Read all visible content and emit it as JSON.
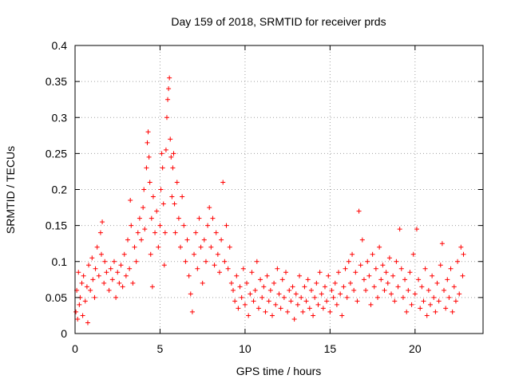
{
  "chart_data": {
    "type": "scatter",
    "title": "Day 159 of 2018, SRMTID for receiver prds",
    "xlabel": "GPS time / hours",
    "ylabel": "SRMTID / TECUs",
    "xlim": [
      0,
      24
    ],
    "ylim": [
      0,
      0.4
    ],
    "grid": true,
    "marker": "+",
    "series_color": "#ff0000",
    "x_ticks": [
      {
        "value": 0,
        "label": "0"
      },
      {
        "value": 5,
        "label": "5"
      },
      {
        "value": 10,
        "label": "10"
      },
      {
        "value": 15,
        "label": "15"
      },
      {
        "value": 20,
        "label": "20"
      }
    ],
    "y_ticks": [
      {
        "value": 0,
        "label": "0"
      },
      {
        "value": 0.05,
        "label": "0.05"
      },
      {
        "value": 0.1,
        "label": "0.1"
      },
      {
        "value": 0.15,
        "label": "0.15"
      },
      {
        "value": 0.2,
        "label": "0.2"
      },
      {
        "value": 0.25,
        "label": "0.25"
      },
      {
        "value": 0.3,
        "label": "0.3"
      },
      {
        "value": 0.35,
        "label": "0.35"
      },
      {
        "value": 0.4,
        "label": "0.4"
      }
    ],
    "series": [
      {
        "name": "prds",
        "points": [
          [
            0.05,
            0.03
          ],
          [
            0.1,
            0.06
          ],
          [
            0.15,
            0.02
          ],
          [
            0.2,
            0.085
          ],
          [
            0.25,
            0.04
          ],
          [
            0.3,
            0.05
          ],
          [
            0.4,
            0.07
          ],
          [
            0.45,
            0.025
          ],
          [
            0.5,
            0.08
          ],
          [
            0.6,
            0.045
          ],
          [
            0.7,
            0.065
          ],
          [
            0.75,
            0.015
          ],
          [
            0.8,
            0.095
          ],
          [
            0.9,
            0.06
          ],
          [
            1.0,
            0.105
          ],
          [
            1.05,
            0.075
          ],
          [
            1.15,
            0.05
          ],
          [
            1.2,
            0.09
          ],
          [
            1.3,
            0.12
          ],
          [
            1.4,
            0.08
          ],
          [
            1.5,
            0.14
          ],
          [
            1.55,
            0.11
          ],
          [
            1.6,
            0.155
          ],
          [
            1.7,
            0.07
          ],
          [
            1.75,
            0.1
          ],
          [
            1.85,
            0.085
          ],
          [
            2.0,
            0.06
          ],
          [
            2.1,
            0.09
          ],
          [
            2.2,
            0.075
          ],
          [
            2.3,
            0.1
          ],
          [
            2.4,
            0.05
          ],
          [
            2.5,
            0.085
          ],
          [
            2.6,
            0.07
          ],
          [
            2.7,
            0.095
          ],
          [
            2.8,
            0.065
          ],
          [
            2.9,
            0.11
          ],
          [
            3.0,
            0.08
          ],
          [
            3.1,
            0.13
          ],
          [
            3.2,
            0.09
          ],
          [
            3.25,
            0.185
          ],
          [
            3.3,
            0.15
          ],
          [
            3.4,
            0.07
          ],
          [
            3.5,
            0.12
          ],
          [
            3.6,
            0.1
          ],
          [
            3.7,
            0.14
          ],
          [
            3.8,
            0.16
          ],
          [
            3.9,
            0.13
          ],
          [
            4.0,
            0.175
          ],
          [
            4.05,
            0.2
          ],
          [
            4.1,
            0.145
          ],
          [
            4.2,
            0.23
          ],
          [
            4.25,
            0.265
          ],
          [
            4.3,
            0.28
          ],
          [
            4.35,
            0.245
          ],
          [
            4.4,
            0.21
          ],
          [
            4.45,
            0.11
          ],
          [
            4.5,
            0.16
          ],
          [
            4.55,
            0.065
          ],
          [
            4.6,
            0.19
          ],
          [
            4.7,
            0.14
          ],
          [
            4.8,
            0.17
          ],
          [
            4.9,
            0.12
          ],
          [
            5.0,
            0.15
          ],
          [
            5.05,
            0.2
          ],
          [
            5.1,
            0.25
          ],
          [
            5.15,
            0.23
          ],
          [
            5.2,
            0.18
          ],
          [
            5.25,
            0.095
          ],
          [
            5.3,
            0.14
          ],
          [
            5.35,
            0.255
          ],
          [
            5.4,
            0.3
          ],
          [
            5.45,
            0.325
          ],
          [
            5.5,
            0.34
          ],
          [
            5.55,
            0.355
          ],
          [
            5.6,
            0.27
          ],
          [
            5.65,
            0.245
          ],
          [
            5.7,
            0.19
          ],
          [
            5.75,
            0.23
          ],
          [
            5.8,
            0.25
          ],
          [
            5.85,
            0.18
          ],
          [
            5.9,
            0.14
          ],
          [
            6.0,
            0.21
          ],
          [
            6.1,
            0.16
          ],
          [
            6.2,
            0.12
          ],
          [
            6.3,
            0.19
          ],
          [
            6.4,
            0.15
          ],
          [
            6.5,
            0.1
          ],
          [
            6.6,
            0.13
          ],
          [
            6.7,
            0.08
          ],
          [
            6.8,
            0.055
          ],
          [
            6.9,
            0.03
          ],
          [
            7.0,
            0.11
          ],
          [
            7.1,
            0.14
          ],
          [
            7.2,
            0.09
          ],
          [
            7.3,
            0.16
          ],
          [
            7.4,
            0.12
          ],
          [
            7.5,
            0.07
          ],
          [
            7.6,
            0.13
          ],
          [
            7.7,
            0.1
          ],
          [
            7.8,
            0.15
          ],
          [
            7.9,
            0.175
          ],
          [
            8.0,
            0.12
          ],
          [
            8.1,
            0.16
          ],
          [
            8.2,
            0.095
          ],
          [
            8.3,
            0.14
          ],
          [
            8.4,
            0.11
          ],
          [
            8.5,
            0.085
          ],
          [
            8.6,
            0.13
          ],
          [
            8.7,
            0.21
          ],
          [
            8.8,
            0.1
          ],
          [
            8.9,
            0.15
          ],
          [
            9.0,
            0.09
          ],
          [
            9.1,
            0.12
          ],
          [
            9.2,
            0.07
          ],
          [
            9.3,
            0.06
          ],
          [
            9.4,
            0.045
          ],
          [
            9.5,
            0.08
          ],
          [
            9.6,
            0.035
          ],
          [
            9.7,
            0.065
          ],
          [
            9.8,
            0.05
          ],
          [
            9.9,
            0.09
          ],
          [
            10.0,
            0.04
          ],
          [
            10.1,
            0.07
          ],
          [
            10.2,
            0.025
          ],
          [
            10.3,
            0.055
          ],
          [
            10.4,
            0.085
          ],
          [
            10.5,
            0.045
          ],
          [
            10.6,
            0.06
          ],
          [
            10.7,
            0.1
          ],
          [
            10.8,
            0.035
          ],
          [
            10.9,
            0.075
          ],
          [
            11.0,
            0.05
          ],
          [
            11.1,
            0.065
          ],
          [
            11.2,
            0.03
          ],
          [
            11.3,
            0.08
          ],
          [
            11.4,
            0.045
          ],
          [
            11.5,
            0.06
          ],
          [
            11.6,
            0.025
          ],
          [
            11.7,
            0.07
          ],
          [
            11.8,
            0.04
          ],
          [
            11.9,
            0.09
          ],
          [
            12.0,
            0.055
          ],
          [
            12.1,
            0.035
          ],
          [
            12.2,
            0.075
          ],
          [
            12.3,
            0.05
          ],
          [
            12.4,
            0.085
          ],
          [
            12.5,
            0.03
          ],
          [
            12.6,
            0.06
          ],
          [
            12.7,
            0.045
          ],
          [
            12.8,
            0.065
          ],
          [
            12.9,
            0.02
          ],
          [
            13.0,
            0.055
          ],
          [
            13.1,
            0.04
          ],
          [
            13.2,
            0.08
          ],
          [
            13.3,
            0.05
          ],
          [
            13.4,
            0.03
          ],
          [
            13.5,
            0.065
          ],
          [
            13.6,
            0.045
          ],
          [
            13.7,
            0.075
          ],
          [
            13.8,
            0.035
          ],
          [
            13.9,
            0.06
          ],
          [
            14.0,
            0.025
          ],
          [
            14.1,
            0.05
          ],
          [
            14.2,
            0.07
          ],
          [
            14.3,
            0.04
          ],
          [
            14.4,
            0.085
          ],
          [
            14.5,
            0.055
          ],
          [
            14.6,
            0.035
          ],
          [
            14.7,
            0.065
          ],
          [
            14.8,
            0.045
          ],
          [
            14.9,
            0.08
          ],
          [
            15.0,
            0.03
          ],
          [
            15.1,
            0.06
          ],
          [
            15.2,
            0.05
          ],
          [
            15.3,
            0.07
          ],
          [
            15.4,
            0.04
          ],
          [
            15.5,
            0.085
          ],
          [
            15.6,
            0.055
          ],
          [
            15.7,
            0.025
          ],
          [
            15.8,
            0.065
          ],
          [
            15.9,
            0.09
          ],
          [
            16.0,
            0.05
          ],
          [
            16.1,
            0.1
          ],
          [
            16.2,
            0.07
          ],
          [
            16.3,
            0.11
          ],
          [
            16.4,
            0.06
          ],
          [
            16.5,
            0.085
          ],
          [
            16.6,
            0.045
          ],
          [
            16.7,
            0.17
          ],
          [
            16.8,
            0.095
          ],
          [
            16.9,
            0.13
          ],
          [
            17.0,
            0.075
          ],
          [
            17.1,
            0.06
          ],
          [
            17.2,
            0.1
          ],
          [
            17.3,
            0.08
          ],
          [
            17.4,
            0.04
          ],
          [
            17.5,
            0.11
          ],
          [
            17.6,
            0.065
          ],
          [
            17.7,
            0.09
          ],
          [
            17.8,
            0.05
          ],
          [
            17.9,
            0.12
          ],
          [
            18.0,
            0.075
          ],
          [
            18.1,
            0.095
          ],
          [
            18.2,
            0.06
          ],
          [
            18.3,
            0.085
          ],
          [
            18.4,
            0.07
          ],
          [
            18.5,
            0.105
          ],
          [
            18.6,
            0.055
          ],
          [
            18.7,
            0.08
          ],
          [
            18.8,
            0.045
          ],
          [
            18.9,
            0.1
          ],
          [
            19.0,
            0.065
          ],
          [
            19.1,
            0.145
          ],
          [
            19.2,
            0.09
          ],
          [
            19.3,
            0.05
          ],
          [
            19.4,
            0.075
          ],
          [
            19.5,
            0.03
          ],
          [
            19.6,
            0.06
          ],
          [
            19.7,
            0.085
          ],
          [
            19.8,
            0.04
          ],
          [
            19.9,
            0.11
          ],
          [
            20.0,
            0.055
          ],
          [
            20.1,
            0.145
          ],
          [
            20.2,
            0.075
          ],
          [
            20.3,
            0.035
          ],
          [
            20.4,
            0.065
          ],
          [
            20.5,
            0.045
          ],
          [
            20.6,
            0.09
          ],
          [
            20.7,
            0.025
          ],
          [
            20.8,
            0.06
          ],
          [
            20.9,
            0.04
          ],
          [
            21.0,
            0.08
          ],
          [
            21.1,
            0.05
          ],
          [
            21.2,
            0.03
          ],
          [
            21.3,
            0.07
          ],
          [
            21.4,
            0.045
          ],
          [
            21.5,
            0.095
          ],
          [
            21.6,
            0.125
          ],
          [
            21.7,
            0.06
          ],
          [
            21.8,
            0.035
          ],
          [
            21.9,
            0.075
          ],
          [
            22.0,
            0.05
          ],
          [
            22.1,
            0.09
          ],
          [
            22.2,
            0.03
          ],
          [
            22.3,
            0.065
          ],
          [
            22.4,
            0.045
          ],
          [
            22.5,
            0.1
          ],
          [
            22.6,
            0.055
          ],
          [
            22.7,
            0.12
          ],
          [
            22.8,
            0.08
          ],
          [
            22.85,
            0.11
          ]
        ]
      }
    ]
  }
}
